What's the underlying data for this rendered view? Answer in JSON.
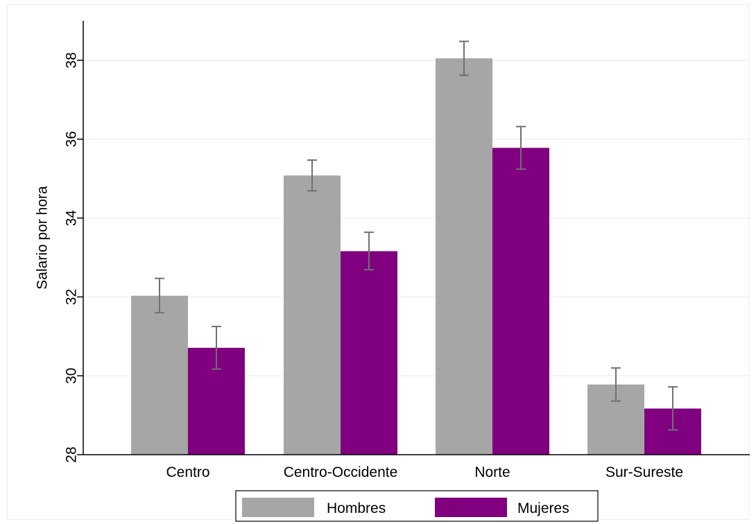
{
  "chart_data": {
    "type": "bar",
    "title": "",
    "xlabel": "",
    "ylabel": "Salario por hora",
    "ylim": [
      28,
      39
    ],
    "yticks": [
      28,
      30,
      32,
      34,
      36,
      38
    ],
    "grid": true,
    "legend_position": "bottom",
    "categories": [
      "Centro",
      "Centro-Occidente",
      "Norte",
      "Sur-Sureste"
    ],
    "series": [
      {
        "name": "Hombres",
        "color": "#a6a6a6",
        "values": [
          32.03,
          35.08,
          38.05,
          29.78
        ],
        "ci_low": [
          31.6,
          34.69,
          37.62,
          29.36
        ],
        "ci_high": [
          32.47,
          35.47,
          38.48,
          30.2
        ]
      },
      {
        "name": "Mujeres",
        "color": "#800080",
        "values": [
          30.71,
          33.16,
          35.78,
          29.17
        ],
        "ci_low": [
          30.17,
          32.69,
          35.24,
          28.63
        ],
        "ci_high": [
          31.25,
          33.64,
          36.32,
          29.72
        ]
      }
    ],
    "error_bar_color": "#707070",
    "grid_color": "#eaf2f3"
  }
}
